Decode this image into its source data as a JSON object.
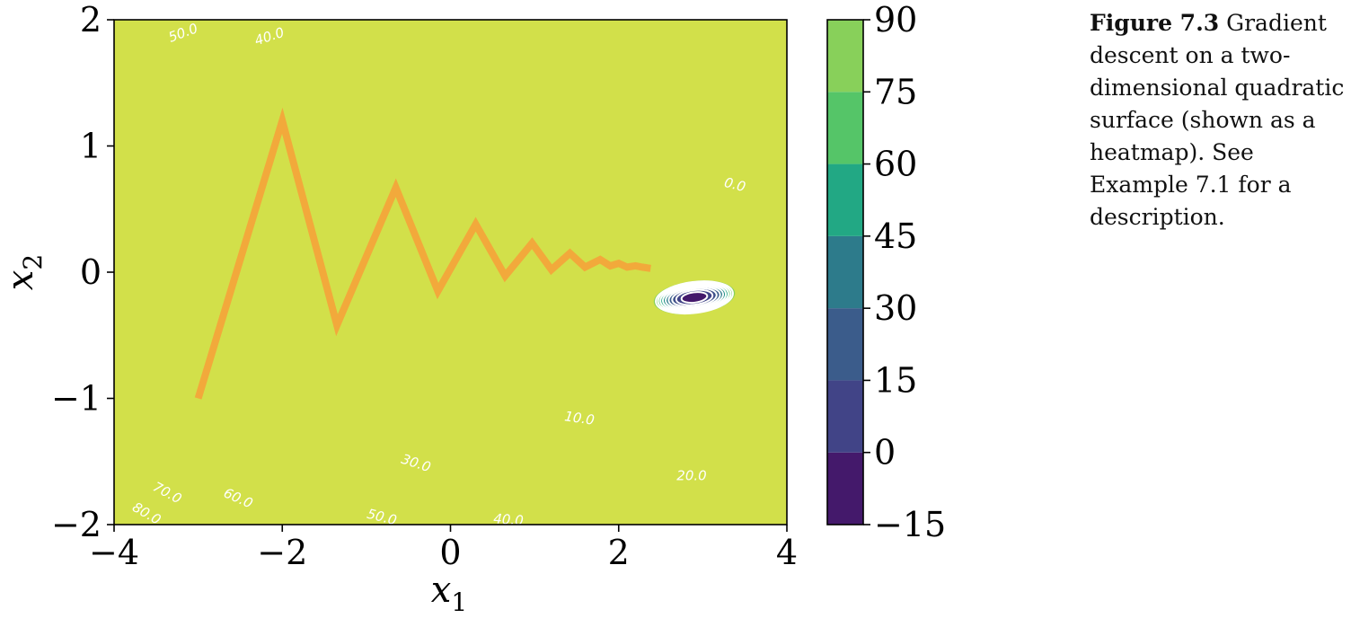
{
  "chart_data": {
    "type": "contour",
    "title": "",
    "xlabel": "x1",
    "ylabel": "x2",
    "xlim": [
      -4,
      4
    ],
    "ylim": [
      -2,
      2
    ],
    "xticks": [
      -4,
      -2,
      0,
      2,
      4
    ],
    "yticks": [
      -2,
      -1,
      0,
      1,
      2
    ],
    "xtick_labels": [
      "−4",
      "−2",
      "0",
      "2",
      "4"
    ],
    "ytick_labels": [
      "−2",
      "−1",
      "0",
      "1",
      "2"
    ],
    "surface": {
      "kind": "quadratic",
      "minimum": [
        2.9,
        -0.2
      ],
      "minimum_value": -10
    },
    "filled_levels": [
      -15,
      0,
      15,
      30,
      45,
      60,
      75,
      90
    ],
    "fill_colors": [
      "#44196b",
      "#414487",
      "#3b5c8b",
      "#2d7b8b",
      "#22a884",
      "#55c568",
      "#88d05a",
      "#d2e04a"
    ],
    "contour_lines": [
      0,
      10,
      20,
      30,
      40,
      50,
      60,
      70,
      80
    ],
    "contour_labels": [
      "0.0",
      "10.0",
      "20.0",
      "30.0",
      "40.0",
      "50.0",
      "60.0",
      "70.0",
      "80.0",
      "40.0",
      "50.0"
    ],
    "colorbar": {
      "ticks": [
        -15,
        0,
        15,
        30,
        45,
        60,
        75,
        90
      ],
      "tick_labels": [
        "−15",
        "0",
        "15",
        "30",
        "45",
        "60",
        "75",
        "90"
      ]
    },
    "path_color": "#f2a93b",
    "path": {
      "x": [
        -3.0,
        -2.0,
        -1.35,
        -0.65,
        -0.15,
        0.3,
        0.65,
        0.97,
        1.2,
        1.42,
        1.6,
        1.78,
        1.9,
        2.0,
        2.1,
        2.2,
        2.28,
        2.38
      ],
      "y": [
        -1.0,
        1.2,
        -0.42,
        0.67,
        -0.15,
        0.38,
        -0.03,
        0.23,
        0.02,
        0.15,
        0.04,
        0.1,
        0.05,
        0.07,
        0.04,
        0.05,
        0.04,
        0.03
      ]
    }
  },
  "caption": {
    "label": "Figure 7.3",
    "text": "Gradient descent on a two-dimensional quadratic surface (shown as a heatmap). See Example 7.1 for a description."
  }
}
